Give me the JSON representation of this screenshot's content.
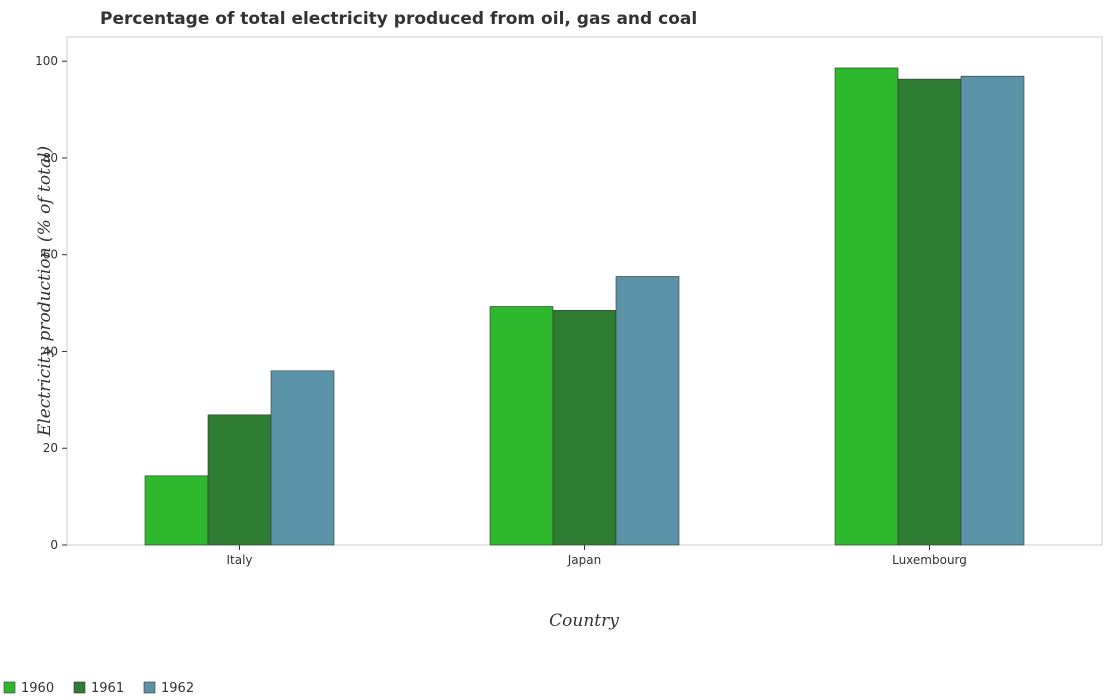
{
  "chart_data": {
    "type": "bar",
    "title": "Percentage of total electricity produced from oil, gas and coal",
    "xlabel": "Country",
    "ylabel": "Electricity production (% of total)",
    "categories": [
      "Italy",
      "Japan",
      "Luxembourg"
    ],
    "series": [
      {
        "name": "1960",
        "color": "#2db82d",
        "values": [
          14.3,
          49.3,
          98.6
        ]
      },
      {
        "name": "1961",
        "color": "#2e7d32",
        "values": [
          26.9,
          48.5,
          96.3
        ]
      },
      {
        "name": "1962",
        "color": "#5a93a8",
        "values": [
          36.0,
          55.5,
          96.9
        ]
      }
    ],
    "ylim": [
      0,
      105
    ],
    "yticks": [
      "0",
      "20",
      "40",
      "60",
      "80",
      "100"
    ],
    "grid": false,
    "legend_position": "bottom-left"
  }
}
